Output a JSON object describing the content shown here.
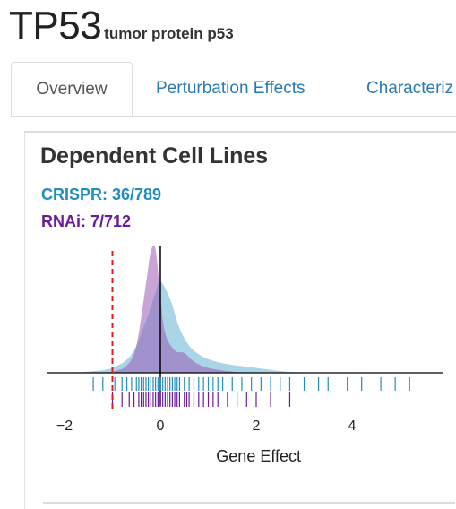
{
  "gene": {
    "symbol": "TP53",
    "name": "tumor protein p53"
  },
  "tabs": [
    {
      "label": "Overview",
      "active": true
    },
    {
      "label": "Perturbation Effects",
      "active": false
    },
    {
      "label": "Characteriz",
      "active": false
    }
  ],
  "panel": {
    "title": "Dependent Cell Lines",
    "crispr_label": "CRISPR: 36/789",
    "rnai_label": "RNAi: 7/712"
  },
  "colors": {
    "crispr": "#1f8dc1",
    "crispr_fill": "#8cc7dd",
    "rnai": "#6a1b9a",
    "rnai_fill": "#9b59b6",
    "threshold": "#e41a1c",
    "tab_link": "#2a7ab5"
  },
  "chart_data": {
    "type": "area",
    "xlabel": "Gene Effect",
    "xlim": [
      -2.5,
      5.7
    ],
    "xticks": [
      -2,
      0,
      2,
      4
    ],
    "xtick_labels": [
      "−2",
      "0",
      "2",
      "4"
    ],
    "threshold": -1,
    "series": [
      {
        "name": "CRISPR",
        "x": [
          -2.0,
          -1.5,
          -1.0,
          -0.6,
          -0.3,
          -0.1,
          0.0,
          0.2,
          0.4,
          0.6,
          0.8,
          1.0,
          1.4,
          2.0,
          2.6,
          3.2
        ],
        "density": [
          0.0,
          0.01,
          0.04,
          0.15,
          0.42,
          0.65,
          0.74,
          0.6,
          0.36,
          0.22,
          0.15,
          0.11,
          0.07,
          0.04,
          0.01,
          0.0
        ]
      },
      {
        "name": "RNAi",
        "x": [
          -1.4,
          -1.0,
          -0.7,
          -0.5,
          -0.3,
          -0.2,
          -0.1,
          0.0,
          0.1,
          0.3,
          0.5,
          0.7,
          1.0,
          1.5,
          2.0
        ],
        "density": [
          0.0,
          0.01,
          0.06,
          0.22,
          0.72,
          0.98,
          1.0,
          0.62,
          0.32,
          0.18,
          0.16,
          0.09,
          0.04,
          0.01,
          0.0
        ]
      }
    ],
    "rug": {
      "CRISPR": [
        -1.4,
        -1.2,
        -0.95,
        -0.8,
        -0.7,
        -0.6,
        -0.5,
        -0.45,
        -0.4,
        -0.35,
        -0.3,
        -0.25,
        -0.2,
        -0.15,
        -0.1,
        -0.05,
        0.0,
        0.05,
        0.1,
        0.15,
        0.2,
        0.25,
        0.3,
        0.35,
        0.4,
        0.5,
        0.6,
        0.7,
        0.8,
        0.9,
        1.0,
        1.1,
        1.2,
        1.3,
        1.5,
        1.7,
        1.9,
        2.1,
        2.3,
        2.5,
        2.7,
        3.0,
        3.3,
        3.5,
        3.9,
        4.2,
        4.6,
        4.9,
        5.2
      ],
      "RNAi": [
        -1.0,
        -0.8,
        -0.65,
        -0.55,
        -0.45,
        -0.4,
        -0.35,
        -0.3,
        -0.25,
        -0.2,
        -0.15,
        -0.1,
        -0.05,
        0.0,
        0.05,
        0.1,
        0.15,
        0.2,
        0.25,
        0.3,
        0.35,
        0.4,
        0.5,
        0.55,
        0.6,
        0.7,
        0.8,
        0.9,
        1.0,
        1.1,
        1.2,
        1.4,
        1.6,
        1.8,
        2.0,
        2.3,
        2.7
      ]
    }
  }
}
